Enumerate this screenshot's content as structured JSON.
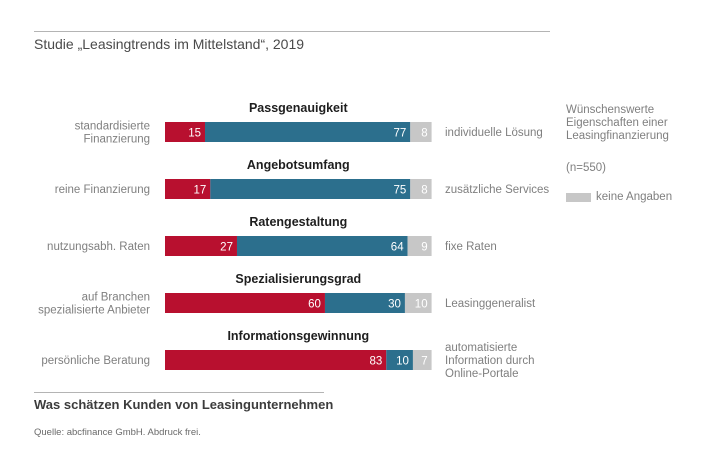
{
  "title": "Studie „Leasingtrends im Mittelstand“, 2019",
  "subtitle": "Was schätzen Kunden von Leasingunternehmen",
  "source": "Quelle: abcfinance GmbH. Abdruck frei.",
  "legend": {
    "heading_lines": [
      "Wünschenswerte",
      "Eigenschaften einer",
      "Leasingfinanzierung"
    ],
    "sample": "(n=550)",
    "no_answer": "keine Angaben"
  },
  "colors": {
    "red": "#b8102f",
    "blue": "#2c6f8d",
    "gray": "#c7c7c7"
  },
  "chart_data": {
    "type": "bar",
    "orientation": "horizontal-stacked",
    "unit": "percent",
    "categories": [
      "Passgenauigkeit",
      "Angebotsumfang",
      "Ratengestaltung",
      "Spezialisierungsgrad",
      "Informationsgewinnung"
    ],
    "left_labels": [
      [
        "standardisierte",
        "Finanzierung"
      ],
      [
        "reine Finanzierung"
      ],
      [
        "nutzungsabh. Raten"
      ],
      [
        "auf Branchen",
        "spezialisierte Anbieter"
      ],
      [
        "persönliche Beratung"
      ]
    ],
    "right_labels": [
      [
        "individuelle Lösung"
      ],
      [
        "zusätzliche Services"
      ],
      [
        "fixe Raten"
      ],
      [
        "Leasinggeneralist"
      ],
      [
        "automatisierte",
        "Information durch",
        "Online-Portale"
      ]
    ],
    "series": [
      {
        "name": "left option",
        "values": [
          15,
          17,
          27,
          60,
          83
        ]
      },
      {
        "name": "right option",
        "values": [
          77,
          75,
          64,
          30,
          10
        ]
      },
      {
        "name": "keine Angaben",
        "values": [
          8,
          8,
          9,
          10,
          7
        ]
      }
    ],
    "xlim": [
      0,
      100
    ]
  }
}
